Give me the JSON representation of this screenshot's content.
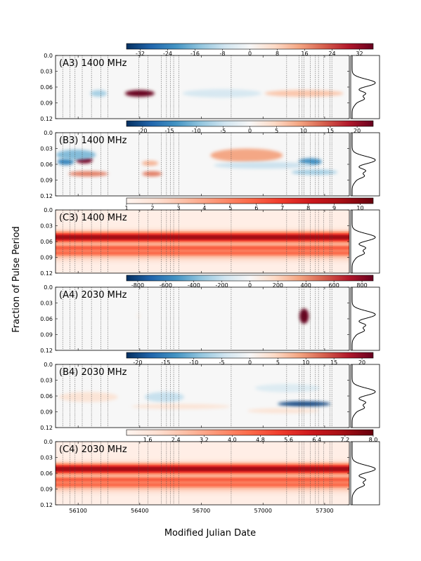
{
  "chart_data": {
    "type": "heatmap",
    "xlabel": "Modified Julian Date",
    "ylabel": "Fraction of Pulse Period",
    "xlim": [
      55990,
      57420
    ],
    "ylim": [
      0.0,
      0.12
    ],
    "x_ticks": [
      56100,
      56400,
      56700,
      57000,
      57300
    ],
    "y_ticks": [
      0.0,
      0.03,
      0.06,
      0.09,
      0.12
    ],
    "observation_epochs_mjd": [
      56025,
      56060,
      56085,
      56120,
      56165,
      56210,
      56245,
      56395,
      56440,
      56505,
      56530,
      56550,
      56565,
      56590,
      56845,
      57115,
      57175,
      57190,
      57200,
      57230,
      57255,
      57270,
      57295,
      57325,
      57335
    ],
    "profile_peaks": [
      {
        "phase": 0.052,
        "amp": 1.0,
        "width": 0.007
      },
      {
        "phase": 0.072,
        "amp": 0.55,
        "width": 0.004
      },
      {
        "phase": 0.082,
        "amp": 0.45,
        "width": 0.004
      },
      {
        "phase": 0.09,
        "amp": 0.15,
        "width": 0.006
      }
    ],
    "colormaps": {
      "diverging": [
        "#053061",
        "#2166ac",
        "#4393c3",
        "#92c5de",
        "#d1e5f0",
        "#f7f7f7",
        "#fddbc7",
        "#f4a582",
        "#d6604d",
        "#b2182b",
        "#67001f"
      ],
      "sequential": [
        "#fff5f0",
        "#fee0d2",
        "#fcbba1",
        "#fc9272",
        "#fb6a4a",
        "#ef3b2c",
        "#cb181d",
        "#a50f15",
        "#67000d"
      ]
    },
    "panels": [
      {
        "label": "(A3) 1400 MHz",
        "colormap": "diverging",
        "clim": [
          -36,
          36
        ],
        "colorbar_ticks": [
          "-32",
          "-24",
          "-16",
          "-8",
          "0",
          "8",
          "16",
          "24",
          "32"
        ],
        "colorbar_tick_values": [
          -32,
          -24,
          -16,
          -8,
          0,
          8,
          16,
          24,
          32
        ],
        "features": [
          {
            "mjd": 56400,
            "phase": 0.072,
            "value": 36,
            "sigma_mjd": 45,
            "sigma_phase": 0.004
          },
          {
            "mjd": 56200,
            "phase": 0.072,
            "value": -12,
            "sigma_mjd": 25,
            "sigma_phase": 0.004
          },
          {
            "mjd": 56800,
            "phase": 0.072,
            "value": -6,
            "sigma_mjd": 120,
            "sigma_phase": 0.005
          },
          {
            "mjd": 57200,
            "phase": 0.072,
            "value": 10,
            "sigma_mjd": 120,
            "sigma_phase": 0.004
          }
        ]
      },
      {
        "label": "(B3) 1400 MHz",
        "colormap": "diverging",
        "clim": [
          -23,
          23
        ],
        "colorbar_ticks": [
          "-20",
          "-15",
          "-10",
          "-5",
          "0",
          "5",
          "10",
          "15",
          "20"
        ],
        "colorbar_tick_values": [
          -20,
          -15,
          -10,
          -5,
          0,
          5,
          10,
          15,
          20
        ],
        "features": [
          {
            "mjd": 56130,
            "phase": 0.052,
            "value": 22,
            "sigma_mjd": 25,
            "sigma_phase": 0.004
          },
          {
            "mjd": 56040,
            "phase": 0.055,
            "value": -15,
            "sigma_mjd": 25,
            "sigma_phase": 0.004
          },
          {
            "mjd": 56090,
            "phase": 0.042,
            "value": -10,
            "sigma_mjd": 60,
            "sigma_phase": 0.006
          },
          {
            "mjd": 56150,
            "phase": 0.078,
            "value": 12,
            "sigma_mjd": 60,
            "sigma_phase": 0.003
          },
          {
            "mjd": 56460,
            "phase": 0.078,
            "value": 12,
            "sigma_mjd": 30,
            "sigma_phase": 0.003
          },
          {
            "mjd": 56450,
            "phase": 0.058,
            "value": 8,
            "sigma_mjd": 25,
            "sigma_phase": 0.003
          },
          {
            "mjd": 56920,
            "phase": 0.043,
            "value": 9,
            "sigma_mjd": 110,
            "sigma_phase": 0.008
          },
          {
            "mjd": 57230,
            "phase": 0.055,
            "value": -14,
            "sigma_mjd": 35,
            "sigma_phase": 0.004
          },
          {
            "mjd": 57250,
            "phase": 0.075,
            "value": -8,
            "sigma_mjd": 70,
            "sigma_phase": 0.003
          },
          {
            "mjd": 57000,
            "phase": 0.062,
            "value": -5,
            "sigma_mjd": 150,
            "sigma_phase": 0.004
          }
        ]
      },
      {
        "label": "(C3) 1400 MHz",
        "colormap": "sequential",
        "clim": [
          1,
          10.5
        ],
        "colorbar_ticks": [
          "1",
          "2",
          "3",
          "4",
          "5",
          "6",
          "7",
          "8",
          "9",
          "10"
        ],
        "colorbar_tick_values": [
          1,
          2,
          3,
          4,
          5,
          6,
          7,
          8,
          9,
          10
        ],
        "features": []
      },
      {
        "label": "(A4) 2030 MHz",
        "colormap": "diverging",
        "clim": [
          -880,
          880
        ],
        "colorbar_ticks": [
          "-800",
          "-600",
          "-400",
          "-200",
          "0",
          "200",
          "400",
          "600",
          "800"
        ],
        "colorbar_tick_values": [
          -800,
          -600,
          -400,
          -200,
          0,
          200,
          400,
          600,
          800
        ],
        "features": [
          {
            "mjd": 57200,
            "phase": 0.055,
            "value": 880,
            "sigma_mjd": 14,
            "sigma_phase": 0.009
          },
          {
            "mjd": 56395,
            "phase": 0.055,
            "value": 40,
            "sigma_mjd": 6,
            "sigma_phase": 0.004
          }
        ]
      },
      {
        "label": "(B4) 2030 MHz",
        "colormap": "diverging",
        "clim": [
          -22,
          22
        ],
        "colorbar_ticks": [
          "-20",
          "-15",
          "-10",
          "-5",
          "0",
          "5",
          "10",
          "15",
          "20"
        ],
        "colorbar_tick_values": [
          -20,
          -15,
          -10,
          -5,
          0,
          5,
          10,
          15,
          20
        ],
        "features": [
          {
            "mjd": 57200,
            "phase": 0.075,
            "value": -20,
            "sigma_mjd": 80,
            "sigma_phase": 0.003
          },
          {
            "mjd": 56520,
            "phase": 0.062,
            "value": -5,
            "sigma_mjd": 60,
            "sigma_phase": 0.006
          },
          {
            "mjd": 56150,
            "phase": 0.062,
            "value": 3,
            "sigma_mjd": 90,
            "sigma_phase": 0.006
          },
          {
            "mjd": 57120,
            "phase": 0.045,
            "value": -3,
            "sigma_mjd": 100,
            "sigma_phase": 0.005
          },
          {
            "mjd": 57100,
            "phase": 0.088,
            "value": 3,
            "sigma_mjd": 110,
            "sigma_phase": 0.003
          },
          {
            "mjd": 56600,
            "phase": 0.08,
            "value": 3,
            "sigma_mjd": 150,
            "sigma_phase": 0.003
          }
        ]
      },
      {
        "label": "(C4) 2030 MHz",
        "colormap": "sequential",
        "clim": [
          1,
          8
        ],
        "colorbar_ticks": [
          "1.6",
          "2.4",
          "3.2",
          "4.0",
          "4.8",
          "5.6",
          "6.4",
          "7.2",
          "8.0"
        ],
        "colorbar_tick_values": [
          1.6,
          2.4,
          3.2,
          4.0,
          4.8,
          5.6,
          6.4,
          7.2,
          8.0
        ],
        "features": []
      }
    ]
  }
}
